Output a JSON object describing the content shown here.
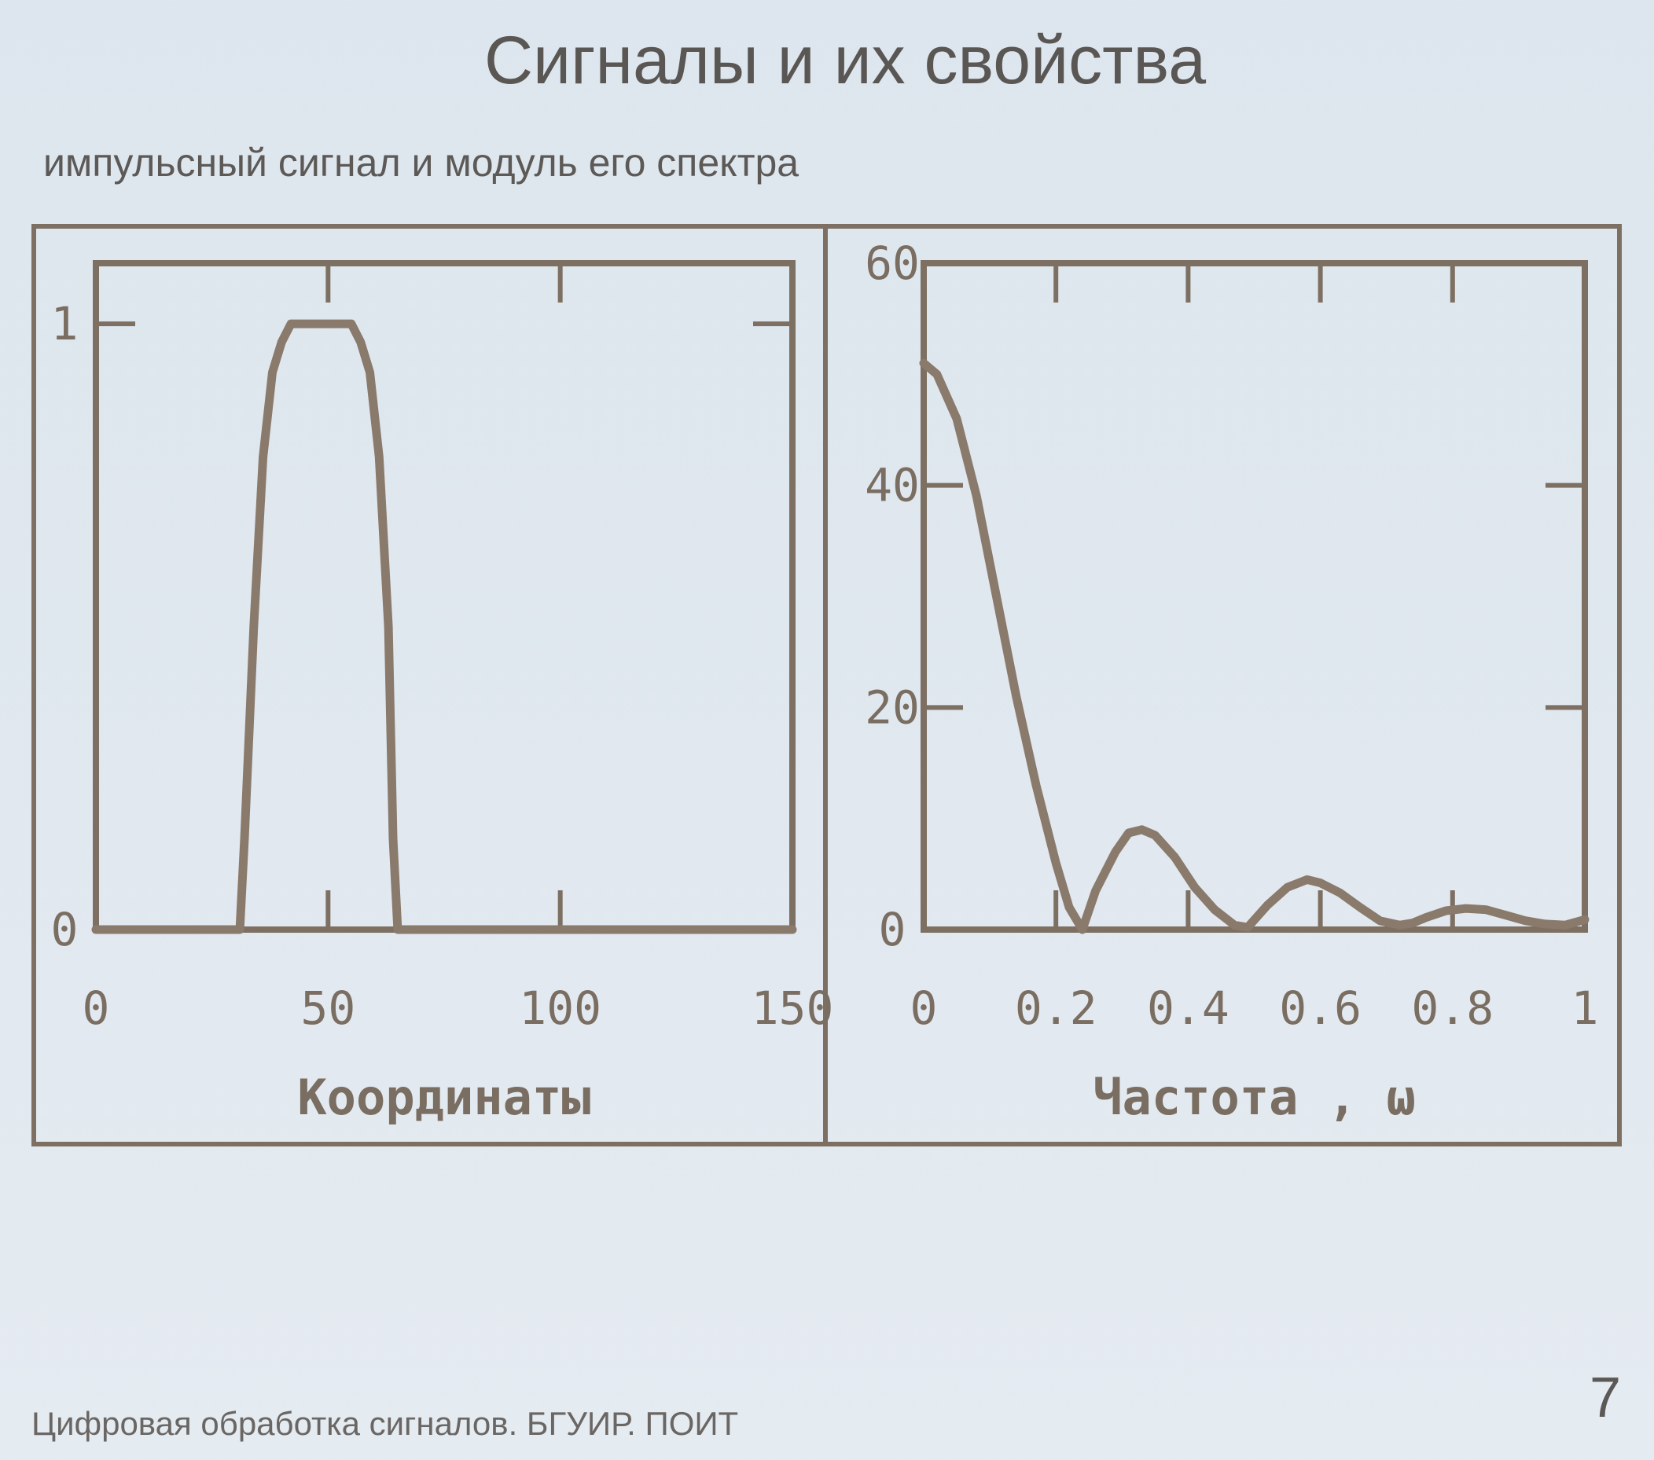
{
  "slide": {
    "title": "Сигналы и их свойства",
    "subtitle": "импульсный сигнал и модуль его спектра",
    "footer": "Цифровая обработка сигналов. БГУИР. ПОИТ",
    "page_number": "7"
  },
  "colors": {
    "curve": "#8a7a6c",
    "frame": "#7d7063",
    "text": "#5a5754"
  },
  "chart_data": [
    {
      "type": "line",
      "title": "",
      "xlabel": "Координаты",
      "ylabel": "",
      "xlim": [
        0,
        150
      ],
      "ylim": [
        0,
        1.1
      ],
      "x_ticks": [
        0,
        50,
        100,
        150
      ],
      "x_tick_labels": [
        "0",
        "50",
        "100",
        "150"
      ],
      "y_ticks": [
        0,
        1
      ],
      "y_tick_labels": [
        "0",
        "1"
      ],
      "grid": false,
      "series": [
        {
          "x": [
            0,
            31,
            32,
            34,
            36,
            38,
            40,
            42,
            45,
            50,
            55,
            57,
            59,
            61,
            63,
            64,
            65,
            150
          ],
          "y": [
            0,
            0,
            0.15,
            0.5,
            0.78,
            0.92,
            0.97,
            1,
            1,
            1,
            1,
            0.97,
            0.92,
            0.78,
            0.5,
            0.15,
            0,
            0
          ]
        }
      ]
    },
    {
      "type": "line",
      "title": "",
      "xlabel": "Частота , ω",
      "ylabel": "",
      "xlim": [
        0,
        1
      ],
      "ylim": [
        0,
        60
      ],
      "x_ticks": [
        0,
        0.2,
        0.4,
        0.6,
        0.8,
        1
      ],
      "x_tick_labels": [
        "0",
        "0.2",
        "0.4",
        "0.6",
        "0.8",
        "1"
      ],
      "y_ticks": [
        0,
        20,
        40,
        60
      ],
      "y_tick_labels": [
        "0",
        "20",
        "40",
        "60"
      ],
      "grid": false,
      "series": [
        {
          "x": [
            0,
            0.02,
            0.05,
            0.08,
            0.11,
            0.14,
            0.17,
            0.2,
            0.22,
            0.24,
            0.26,
            0.29,
            0.31,
            0.33,
            0.35,
            0.38,
            0.41,
            0.44,
            0.47,
            0.49,
            0.52,
            0.55,
            0.58,
            0.6,
            0.63,
            0.66,
            0.69,
            0.72,
            0.74,
            0.76,
            0.79,
            0.82,
            0.85,
            0.88,
            0.91,
            0.94,
            0.97,
            1.0
          ],
          "y": [
            51,
            50,
            46,
            39,
            30,
            21,
            13,
            6,
            2,
            0,
            3.5,
            7,
            8.7,
            9,
            8.5,
            6.5,
            3.8,
            1.8,
            0.4,
            0.2,
            2.2,
            3.8,
            4.5,
            4.2,
            3.3,
            2,
            0.8,
            0.4,
            0.6,
            1.1,
            1.7,
            1.9,
            1.8,
            1.3,
            0.8,
            0.5,
            0.4,
            0.9
          ]
        }
      ]
    }
  ]
}
